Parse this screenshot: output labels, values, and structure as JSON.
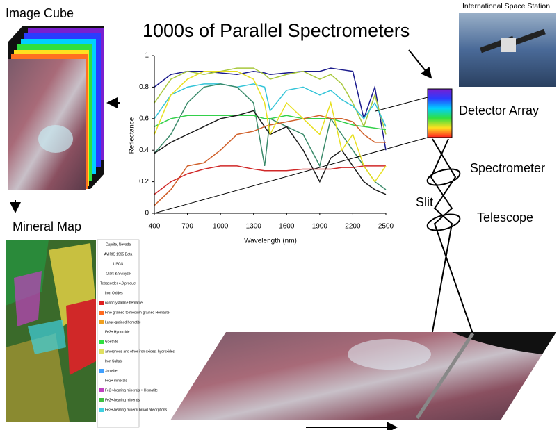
{
  "labels": {
    "image_cube": "Image Cube",
    "mineral_map": "Mineral Map",
    "iss": "International Space Station",
    "detector": "Detector Array",
    "spectrometer": "Spectrometer",
    "slit": "Slit",
    "telescope": "Telescope"
  },
  "mineral_map": {
    "legend": [
      "Cuprite, Nevada",
      "AVIRIS 1995 Data",
      "USGS",
      "Clark & Swayze",
      "Tetracorder 4.3 product",
      "Iron Oxides",
      "nanocrystalline hematite",
      "Fine-grained to medium-grained Hematite",
      "Large-grained hematite",
      "Fe3+ Hydroxide",
      "Goethite",
      "amorphous and other iron oxides, hydroxides",
      "Iron Sulfate",
      "Jarosite",
      "Fe2+ minerals",
      "Fe2+-bearing minerals + Hematite",
      "Fe2+-bearing minerals",
      "Fe2+-bearing mineral broad absorptions"
    ]
  },
  "chart_data": {
    "type": "line",
    "title": "1000s of  Parallel Spectrometers",
    "x_label": "Wavelength (nm)",
    "y_label": "Reflectance",
    "x": [
      400,
      550,
      700,
      850,
      1000,
      1150,
      1300,
      1400,
      1450,
      1600,
      1750,
      1900,
      2000,
      2100,
      2200,
      2300,
      2400,
      2500
    ],
    "series": [
      {
        "color": "#1a1a8c",
        "values": [
          0.8,
          0.88,
          0.9,
          0.9,
          0.89,
          0.88,
          0.9,
          0.89,
          0.88,
          0.89,
          0.9,
          0.9,
          0.92,
          0.91,
          0.9,
          0.6,
          0.8,
          0.4
        ]
      },
      {
        "color": "#a8c83c",
        "values": [
          0.7,
          0.85,
          0.9,
          0.88,
          0.9,
          0.92,
          0.92,
          0.88,
          0.85,
          0.88,
          0.9,
          0.85,
          0.88,
          0.82,
          0.7,
          0.55,
          0.75,
          0.5
        ]
      },
      {
        "color": "#33c4d8",
        "values": [
          0.6,
          0.75,
          0.8,
          0.82,
          0.82,
          0.8,
          0.82,
          0.8,
          0.65,
          0.78,
          0.8,
          0.75,
          0.78,
          0.72,
          0.68,
          0.6,
          0.7,
          0.55
        ]
      },
      {
        "color": "#3a8a6a",
        "values": [
          0.38,
          0.5,
          0.7,
          0.8,
          0.82,
          0.8,
          0.7,
          0.3,
          0.6,
          0.55,
          0.5,
          0.3,
          0.6,
          0.5,
          0.4,
          0.3,
          0.2,
          0.15
        ]
      },
      {
        "color": "#33d04a",
        "values": [
          0.55,
          0.6,
          0.62,
          0.62,
          0.62,
          0.62,
          0.62,
          0.6,
          0.6,
          0.62,
          0.6,
          0.6,
          0.6,
          0.58,
          0.56,
          0.55,
          0.54,
          0.53
        ]
      },
      {
        "color": "#1a1a1a",
        "values": [
          0.38,
          0.45,
          0.5,
          0.55,
          0.6,
          0.62,
          0.65,
          0.55,
          0.5,
          0.55,
          0.4,
          0.2,
          0.35,
          0.4,
          0.3,
          0.2,
          0.15,
          0.12
        ]
      },
      {
        "color": "#d0602a",
        "values": [
          0.05,
          0.15,
          0.3,
          0.32,
          0.4,
          0.5,
          0.52,
          0.55,
          0.56,
          0.58,
          0.6,
          0.62,
          0.6,
          0.6,
          0.58,
          0.5,
          0.45,
          0.45
        ]
      },
      {
        "color": "#d02828",
        "values": [
          0.12,
          0.2,
          0.25,
          0.28,
          0.3,
          0.3,
          0.28,
          0.27,
          0.27,
          0.27,
          0.28,
          0.28,
          0.28,
          0.29,
          0.29,
          0.3,
          0.3,
          0.3
        ]
      },
      {
        "color": "#e8e020",
        "values": [
          0.5,
          0.75,
          0.85,
          0.9,
          0.9,
          0.9,
          0.85,
          0.7,
          0.5,
          0.7,
          0.6,
          0.5,
          0.7,
          0.4,
          0.5,
          0.3,
          0.2,
          0.3
        ]
      }
    ],
    "xlim": [
      400,
      2500
    ],
    "xticks": [
      400,
      700,
      1000,
      1300,
      1600,
      1900,
      2200,
      2500
    ],
    "ylim": [
      0,
      1
    ],
    "yticks": [
      0,
      0.2,
      0.4,
      0.6,
      0.8,
      1
    ]
  }
}
